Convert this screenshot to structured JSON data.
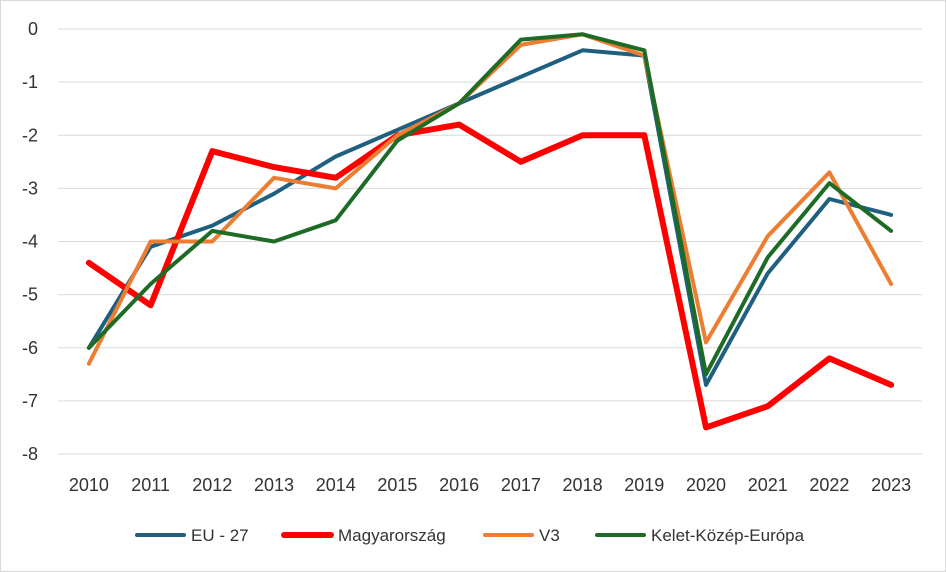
{
  "chart_data": {
    "type": "line",
    "title": "",
    "xlabel": "",
    "ylabel": "",
    "ylim": [
      -8,
      0
    ],
    "yticks": [
      0,
      -1,
      -2,
      -3,
      -4,
      -5,
      -6,
      -7,
      -8
    ],
    "ytick_labels": [
      "0",
      "-1",
      "-2",
      "-3",
      "-4",
      "-5",
      "-6",
      "-7",
      "-8"
    ],
    "grid": "horizontal",
    "legend_position": "bottom",
    "categories": [
      "2010",
      "2011",
      "2012",
      "2013",
      "2014",
      "2015",
      "2016",
      "2017",
      "2018",
      "2019",
      "2020",
      "2021",
      "2022",
      "2023"
    ],
    "series": [
      {
        "name": "EU - 27",
        "color": "#1f5f7f",
        "values": [
          -6.0,
          -4.1,
          -3.7,
          -3.1,
          -2.4,
          -1.9,
          -1.4,
          -0.9,
          -0.4,
          -0.5,
          -6.7,
          -4.6,
          -3.2,
          -3.5
        ]
      },
      {
        "name": "Magyarország",
        "color": "#ff0000",
        "values": [
          -4.4,
          -5.2,
          -2.3,
          -2.6,
          -2.8,
          -2.0,
          -1.8,
          -2.5,
          -2.0,
          -2.0,
          -7.5,
          -7.1,
          -6.2,
          -6.7
        ]
      },
      {
        "name": "V3",
        "color": "#ed7d31",
        "values": [
          -6.3,
          -4.0,
          -4.0,
          -2.8,
          -3.0,
          -2.0,
          -1.4,
          -0.3,
          -0.1,
          -0.5,
          -5.9,
          -3.9,
          -2.7,
          -4.8
        ]
      },
      {
        "name": "Kelet-Közép-Európa",
        "color": "#1e6b26",
        "values": [
          -6.0,
          -4.8,
          -3.8,
          -4.0,
          -3.6,
          -2.1,
          -1.4,
          -0.2,
          -0.1,
          -0.4,
          -6.5,
          -4.3,
          -2.9,
          -3.8
        ]
      }
    ]
  }
}
